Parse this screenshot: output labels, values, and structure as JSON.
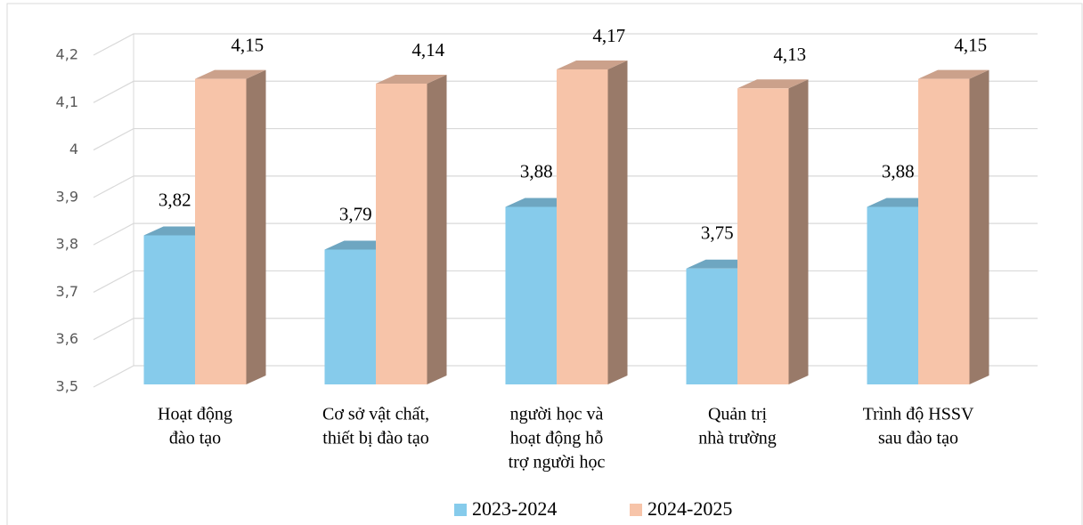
{
  "chart_data": {
    "type": "bar3d",
    "categories": [
      [
        "Hoạt động",
        "đào tạo"
      ],
      [
        "Cơ sở vật chất,",
        "thiết bị đào tạo"
      ],
      [
        "người học và",
        "hoạt động hỗ",
        "trợ người học"
      ],
      [
        "Quản trị",
        "nhà trường"
      ],
      [
        "Trình độ HSSV",
        "sau đào tạo"
      ]
    ],
    "series": [
      {
        "name": "2023-2024",
        "color": "#86cbeb",
        "values": [
          3.82,
          3.79,
          3.88,
          3.75,
          3.88
        ],
        "value_labels": [
          "3,82",
          "3,79",
          "3,88",
          "3,75",
          "3,88"
        ]
      },
      {
        "name": "2024-2025",
        "color": "#f7c4a9",
        "values": [
          4.15,
          4.14,
          4.17,
          4.13,
          4.15
        ],
        "value_labels": [
          "4,15",
          "4,14",
          "4,17",
          "4,13",
          "4,15"
        ]
      }
    ],
    "ylim": [
      3.5,
      4.2
    ],
    "yticks": [
      {
        "value": 3.5,
        "label": "3,5"
      },
      {
        "value": 3.6,
        "label": "3,6"
      },
      {
        "value": 3.7,
        "label": "3,7"
      },
      {
        "value": 3.8,
        "label": "3,8"
      },
      {
        "value": 3.9,
        "label": "3,9"
      },
      4,
      {
        "value": 4.1,
        "label": "4,1"
      },
      {
        "value": 4.2,
        "label": "4,2"
      }
    ],
    "grid": true,
    "legend": "bottom"
  }
}
